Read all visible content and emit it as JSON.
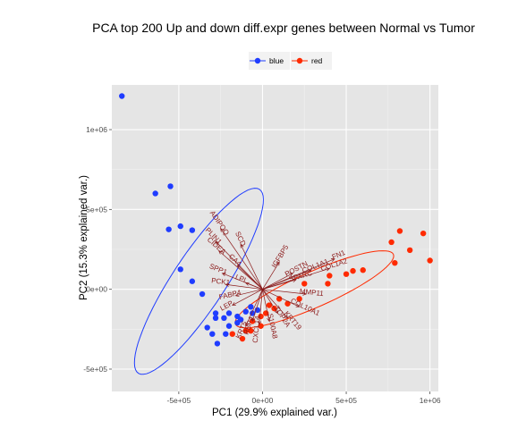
{
  "chart_data": {
    "type": "scatter",
    "title": "PCA top 200 Up and down diff.expr genes between Normal vs Tumor",
    "xlabel": "PC1 (29.9% explained var.)",
    "ylabel": "PC2 (15.3% explained var.)",
    "xlim": [
      -900000,
      1050000
    ],
    "ylim": [
      -640000,
      1280000
    ],
    "xticks": [
      -500000,
      0,
      500000,
      1000000
    ],
    "xtick_labels": [
      "-5e+05",
      "0e+00",
      "5e+05",
      "1e+06"
    ],
    "yticks": [
      -500000,
      0,
      500000,
      1000000
    ],
    "ytick_labels": [
      "-5e+05",
      "0e+00",
      "5e+05",
      "1e+06"
    ],
    "grid": true,
    "legend_position": "top",
    "series": [
      {
        "name": "blue",
        "color": "#1f3cff",
        "points": [
          [
            -840000,
            1210000
          ],
          [
            -550000,
            645000
          ],
          [
            -640000,
            600000
          ],
          [
            -490000,
            395000
          ],
          [
            -560000,
            375000
          ],
          [
            -420000,
            370000
          ],
          [
            -490000,
            125000
          ],
          [
            -420000,
            50000
          ],
          [
            -360000,
            -30000
          ],
          [
            -280000,
            -150000
          ],
          [
            -230000,
            -180000
          ],
          [
            -280000,
            -180000
          ],
          [
            -200000,
            -230000
          ],
          [
            -330000,
            -240000
          ],
          [
            -300000,
            -280000
          ],
          [
            -270000,
            -340000
          ],
          [
            -220000,
            -280000
          ],
          [
            -150000,
            -170000
          ],
          [
            -130000,
            -190000
          ],
          [
            -100000,
            -140000
          ],
          [
            -70000,
            -110000
          ],
          [
            -30000,
            -130000
          ],
          [
            -150000,
            -210000
          ],
          [
            -200000,
            -150000
          ],
          [
            -60000,
            -150000
          ]
        ]
      },
      {
        "name": "red",
        "color": "#ff2a00",
        "points": [
          [
            1000000,
            180000
          ],
          [
            960000,
            350000
          ],
          [
            880000,
            245000
          ],
          [
            820000,
            365000
          ],
          [
            770000,
            295000
          ],
          [
            790000,
            165000
          ],
          [
            600000,
            120000
          ],
          [
            540000,
            115000
          ],
          [
            500000,
            95000
          ],
          [
            400000,
            85000
          ],
          [
            390000,
            35000
          ],
          [
            250000,
            35000
          ],
          [
            220000,
            -60000
          ],
          [
            150000,
            -90000
          ],
          [
            100000,
            -60000
          ],
          [
            70000,
            -120000
          ],
          [
            40000,
            -100000
          ],
          [
            20000,
            -150000
          ],
          [
            -10000,
            -170000
          ],
          [
            -60000,
            -200000
          ],
          [
            -100000,
            -260000
          ],
          [
            -120000,
            -310000
          ],
          [
            -180000,
            -280000
          ],
          [
            -10000,
            -230000
          ],
          [
            -70000,
            -260000
          ]
        ]
      }
    ],
    "ellipses": [
      {
        "series": "blue",
        "cx": -380000,
        "cy": 50000,
        "rx": 680000,
        "ry": 160000,
        "angle_deg": -58
      },
      {
        "series": "red",
        "cx": 310000,
        "cy": 0,
        "rx": 520000,
        "ry": 110000,
        "angle_deg": -25
      }
    ],
    "arrows": [
      {
        "label": "SCD",
        "x": -130000,
        "y": 280000
      },
      {
        "label": "ADIPOQ",
        "x": -250000,
        "y": 380000
      },
      {
        "label": "PLIN1",
        "x": -280000,
        "y": 300000
      },
      {
        "label": "CIDEA",
        "x": -260000,
        "y": 240000
      },
      {
        "label": "SPP1",
        "x": -240000,
        "y": 100000
      },
      {
        "label": "PCK1",
        "x": -220000,
        "y": 30000
      },
      {
        "label": "IGFBP5",
        "x": 100000,
        "y": 170000
      },
      {
        "label": "COL1A1",
        "x": 290000,
        "y": 120000
      },
      {
        "label": "COL1A2",
        "x": 400000,
        "y": 130000
      },
      {
        "label": "FN1",
        "x": 430000,
        "y": 190000
      },
      {
        "label": "POSTN",
        "x": 180000,
        "y": 100000
      },
      {
        "label": "SPARC",
        "x": 200000,
        "y": 60000
      },
      {
        "label": "MMP11",
        "x": 260000,
        "y": -30000
      },
      {
        "label": "COL10A1",
        "x": 220000,
        "y": -110000
      },
      {
        "label": "KRT19",
        "x": 150000,
        "y": -180000
      },
      {
        "label": "TOP2A",
        "x": 90000,
        "y": -150000
      },
      {
        "label": "LEP",
        "x": -180000,
        "y": -100000
      },
      {
        "label": "FABP4",
        "x": -160000,
        "y": -40000
      },
      {
        "label": "LPL",
        "x": -100000,
        "y": 40000
      },
      {
        "label": "RBP4",
        "x": -60000,
        "y": -200000
      },
      {
        "label": "KRT5",
        "x": -100000,
        "y": -230000
      },
      {
        "label": "CXCL14",
        "x": -20000,
        "y": -220000
      },
      {
        "label": "S100A8",
        "x": 40000,
        "y": -200000
      },
      {
        "label": "CA4",
        "x": -150000,
        "y": 150000
      }
    ]
  }
}
